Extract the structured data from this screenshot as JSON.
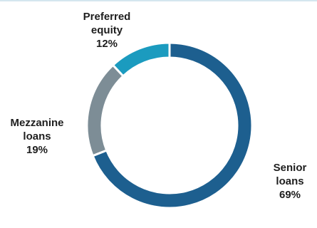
{
  "chart_data": {
    "type": "pie",
    "donut": true,
    "slices": [
      {
        "label": "Senior loans",
        "value": 69,
        "display": [
          "Senior",
          "loans",
          "69%"
        ],
        "color": "#1d5f8f"
      },
      {
        "label": "Mezzanine loans",
        "value": 19,
        "display": [
          "Mezzanine",
          "loans",
          "19%"
        ],
        "color": "#7d8d96"
      },
      {
        "label": "Preferred equity",
        "value": 12,
        "display": [
          "Preferred",
          "equity",
          "12%"
        ],
        "color": "#1b9bbf"
      }
    ],
    "start_angle_deg": 0,
    "direction": "clockwise"
  }
}
